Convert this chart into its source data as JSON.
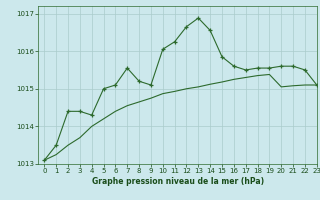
{
  "title": "Graphe pression niveau de la mer (hPa)",
  "bg_color": "#cce8ec",
  "grid_color": "#aacccc",
  "line_color": "#2d6a2d",
  "xlim": [
    -0.5,
    23
  ],
  "ylim": [
    1013,
    1017.2
  ],
  "xticks": [
    0,
    1,
    2,
    3,
    4,
    5,
    6,
    7,
    8,
    9,
    10,
    11,
    12,
    13,
    14,
    15,
    16,
    17,
    18,
    19,
    20,
    21,
    22,
    23
  ],
  "yticks": [
    1013,
    1014,
    1015,
    1016,
    1017
  ],
  "curve1_x": [
    0,
    1,
    2,
    3,
    4,
    5,
    6,
    7,
    8,
    9,
    10,
    11,
    12,
    13,
    14,
    15,
    16,
    17,
    18,
    19,
    20,
    21,
    22,
    23
  ],
  "curve1_y": [
    1013.1,
    1013.5,
    1014.4,
    1014.4,
    1014.3,
    1015.0,
    1015.1,
    1015.55,
    1015.2,
    1015.1,
    1016.05,
    1016.25,
    1016.65,
    1016.88,
    1016.55,
    1015.85,
    1015.6,
    1015.5,
    1015.55,
    1015.55,
    1015.6,
    1015.6,
    1015.5,
    1015.1
  ],
  "curve2_x": [
    0,
    1,
    2,
    3,
    4,
    5,
    6,
    7,
    8,
    9,
    10,
    11,
    12,
    13,
    14,
    15,
    16,
    17,
    18,
    19,
    20,
    21,
    22,
    23
  ],
  "curve2_y": [
    1013.1,
    1013.25,
    1013.5,
    1013.7,
    1014.0,
    1014.2,
    1014.4,
    1014.55,
    1014.65,
    1014.75,
    1014.87,
    1014.93,
    1015.0,
    1015.05,
    1015.12,
    1015.18,
    1015.25,
    1015.3,
    1015.35,
    1015.38,
    1015.05,
    1015.08,
    1015.1,
    1015.1
  ]
}
